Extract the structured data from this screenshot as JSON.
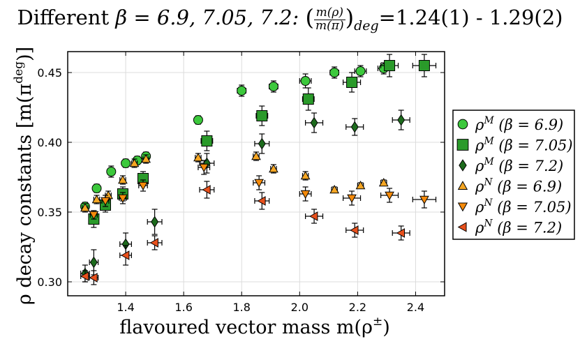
{
  "chart_data": {
    "type": "scatter",
    "title": "Different β = 6.9, 7.05, 7.2: (m(ρ)/m(π))_deg = 1.24(1) - 1.29(2)",
    "title_parts": {
      "prefix": "Different ",
      "beta_expr": "β = 6.9, 7.05, 7.2:",
      "ratio_num": "m(ρ)",
      "ratio_den": "m(π)",
      "ratio_sub": "deg",
      "result": "=1.24(1) - 1.29(2)"
    },
    "xlabel": "flavoured vector mass m(ρ±)",
    "ylabel": "ρ decay constants [m(πdeg)]",
    "xlabel_parts": {
      "text": "flavoured vector mass m(ρ",
      "sup": "±",
      "close": ")"
    },
    "ylabel_parts": {
      "text": "ρ decay constants  [m(π",
      "sup": "deg",
      "close": ")]"
    },
    "xlim": [
      1.2,
      2.5
    ],
    "ylim": [
      0.29,
      0.465
    ],
    "xticks": [
      1.4,
      1.6,
      1.8,
      2.0,
      2.2,
      2.4
    ],
    "xtick_labels": [
      "1.4",
      "1.6",
      "1.8",
      "2.0",
      "2.2",
      "2.4"
    ],
    "yticks": [
      0.3,
      0.35,
      0.4,
      0.45
    ],
    "ytick_labels": [
      "0.30",
      "0.35",
      "0.40",
      "0.45"
    ],
    "grid": true,
    "legend_position": "outside-right",
    "series": [
      {
        "name": "ρM (β = 6.9)",
        "label_sym": "ρ",
        "label_sup": "M",
        "label_beta": "(β = 6.9)",
        "marker": "circle",
        "color": "#3cc83c",
        "points": [
          [
            1.26,
            0.354,
            0.012,
            0.003
          ],
          [
            1.3,
            0.367,
            0.012,
            0.003
          ],
          [
            1.35,
            0.379,
            0.012,
            0.004
          ],
          [
            1.4,
            0.385,
            0.012,
            0.003
          ],
          [
            1.44,
            0.387,
            0.012,
            0.003
          ],
          [
            1.47,
            0.39,
            0.012,
            0.003
          ],
          [
            1.65,
            0.416,
            0.012,
            0.003
          ],
          [
            1.8,
            0.437,
            0.015,
            0.004
          ],
          [
            1.91,
            0.44,
            0.015,
            0.004
          ],
          [
            2.02,
            0.444,
            0.02,
            0.005
          ],
          [
            2.12,
            0.45,
            0.015,
            0.004
          ],
          [
            2.21,
            0.451,
            0.02,
            0.004
          ],
          [
            2.29,
            0.453,
            0.02,
            0.004
          ]
        ]
      },
      {
        "name": "ρM (β = 7.05)",
        "label_sym": "ρ",
        "label_sup": "M",
        "label_beta": "(β = 7.05)",
        "marker": "square",
        "color": "#2a9a2a",
        "points": [
          [
            1.29,
            0.345,
            0.015,
            0.006
          ],
          [
            1.33,
            0.355,
            0.015,
            0.005
          ],
          [
            1.39,
            0.363,
            0.015,
            0.005
          ],
          [
            1.46,
            0.374,
            0.015,
            0.005
          ],
          [
            1.68,
            0.401,
            0.02,
            0.007
          ],
          [
            1.87,
            0.419,
            0.02,
            0.007
          ],
          [
            2.03,
            0.431,
            0.02,
            0.008
          ],
          [
            2.18,
            0.443,
            0.03,
            0.007
          ],
          [
            2.31,
            0.455,
            0.03,
            0.008
          ],
          [
            2.43,
            0.455,
            0.04,
            0.008
          ]
        ]
      },
      {
        "name": "ρM (β = 7.2)",
        "label_sym": "ρ",
        "label_sup": "M",
        "label_beta": "(β = 7.2)",
        "marker": "diamond",
        "color": "#1d6b1d",
        "points": [
          [
            1.26,
            0.306,
            0.015,
            0.006
          ],
          [
            1.29,
            0.314,
            0.015,
            0.009
          ],
          [
            1.4,
            0.327,
            0.02,
            0.008
          ],
          [
            1.5,
            0.343,
            0.025,
            0.009
          ],
          [
            1.68,
            0.385,
            0.025,
            0.007
          ],
          [
            1.87,
            0.399,
            0.025,
            0.007
          ],
          [
            2.05,
            0.414,
            0.03,
            0.007
          ],
          [
            2.19,
            0.411,
            0.03,
            0.006
          ],
          [
            2.35,
            0.416,
            0.03,
            0.007
          ]
        ]
      },
      {
        "name": "ρN (β = 6.9)",
        "label_sym": "ρ",
        "label_sup": "N",
        "label_beta": "(β = 6.9)",
        "marker": "triangle-up",
        "color": "#f5a623",
        "points": [
          [
            1.26,
            0.353,
            0.01,
            0.003
          ],
          [
            1.3,
            0.359,
            0.01,
            0.003
          ],
          [
            1.34,
            0.362,
            0.01,
            0.003
          ],
          [
            1.39,
            0.373,
            0.01,
            0.003
          ],
          [
            1.43,
            0.385,
            0.01,
            0.003
          ],
          [
            1.47,
            0.388,
            0.01,
            0.003
          ],
          [
            1.65,
            0.389,
            0.01,
            0.003
          ],
          [
            1.85,
            0.39,
            0.01,
            0.003
          ],
          [
            1.91,
            0.381,
            0.01,
            0.003
          ],
          [
            2.02,
            0.376,
            0.01,
            0.003
          ],
          [
            2.12,
            0.366,
            0.01,
            0.002
          ],
          [
            2.21,
            0.369,
            0.01,
            0.002
          ],
          [
            2.29,
            0.371,
            0.01,
            0.002
          ]
        ]
      },
      {
        "name": "ρN (β = 7.05)",
        "label_sym": "ρ",
        "label_sup": "N",
        "label_beta": "(β = 7.05)",
        "marker": "triangle-down",
        "color": "#f58a0a",
        "points": [
          [
            1.29,
            0.348,
            0.012,
            0.003
          ],
          [
            1.33,
            0.358,
            0.012,
            0.004
          ],
          [
            1.39,
            0.36,
            0.012,
            0.004
          ],
          [
            1.46,
            0.369,
            0.015,
            0.004
          ],
          [
            1.67,
            0.382,
            0.02,
            0.005
          ],
          [
            1.86,
            0.371,
            0.02,
            0.005
          ],
          [
            2.02,
            0.363,
            0.02,
            0.005
          ],
          [
            2.18,
            0.36,
            0.03,
            0.005
          ],
          [
            2.31,
            0.362,
            0.03,
            0.005
          ],
          [
            2.43,
            0.359,
            0.04,
            0.006
          ]
        ]
      },
      {
        "name": "ρN (β = 7.2)",
        "label_sym": "ρ",
        "label_sup": "N",
        "label_beta": "(β = 7.2)",
        "marker": "triangle-left",
        "color": "#e8501c",
        "points": [
          [
            1.26,
            0.304,
            0.015,
            0.004
          ],
          [
            1.29,
            0.303,
            0.015,
            0.005
          ],
          [
            1.4,
            0.319,
            0.02,
            0.007
          ],
          [
            1.5,
            0.328,
            0.025,
            0.005
          ],
          [
            1.68,
            0.366,
            0.025,
            0.006
          ],
          [
            1.87,
            0.358,
            0.025,
            0.006
          ],
          [
            2.05,
            0.347,
            0.03,
            0.005
          ],
          [
            2.19,
            0.337,
            0.03,
            0.005
          ],
          [
            2.35,
            0.335,
            0.03,
            0.005
          ]
        ]
      }
    ]
  }
}
